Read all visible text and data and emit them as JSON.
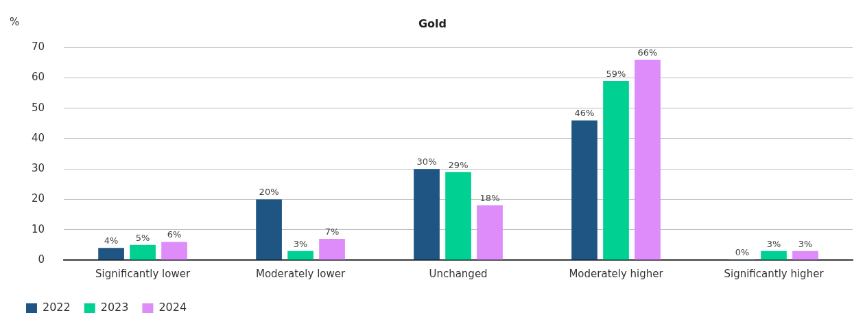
{
  "chart_data": {
    "type": "bar",
    "title": "Gold",
    "ylabel": "%",
    "categories": [
      "Significantly lower",
      "Moderately lower",
      "Unchanged",
      "Moderately higher",
      "Significantly higher"
    ],
    "series": [
      {
        "name": "2022",
        "color": "#1f5582",
        "values": [
          4,
          20,
          30,
          46,
          0
        ],
        "value_labels": [
          "4%",
          "20%",
          "30%",
          "46%",
          "0%"
        ]
      },
      {
        "name": "2023",
        "color": "#00d193",
        "values": [
          5,
          3,
          29,
          59,
          3
        ],
        "value_labels": [
          "5%",
          "3%",
          "29%",
          "59%",
          "3%"
        ]
      },
      {
        "name": "2024",
        "color": "#dd8cf9",
        "values": [
          6,
          7,
          18,
          66,
          3
        ],
        "value_labels": [
          "6%",
          "7%",
          "18%",
          "66%",
          "3%"
        ]
      }
    ],
    "ylim": [
      0,
      70
    ],
    "yticks": [
      0,
      10,
      20,
      30,
      40,
      50,
      60,
      70
    ],
    "grid": "y",
    "legend": "bottom left"
  }
}
